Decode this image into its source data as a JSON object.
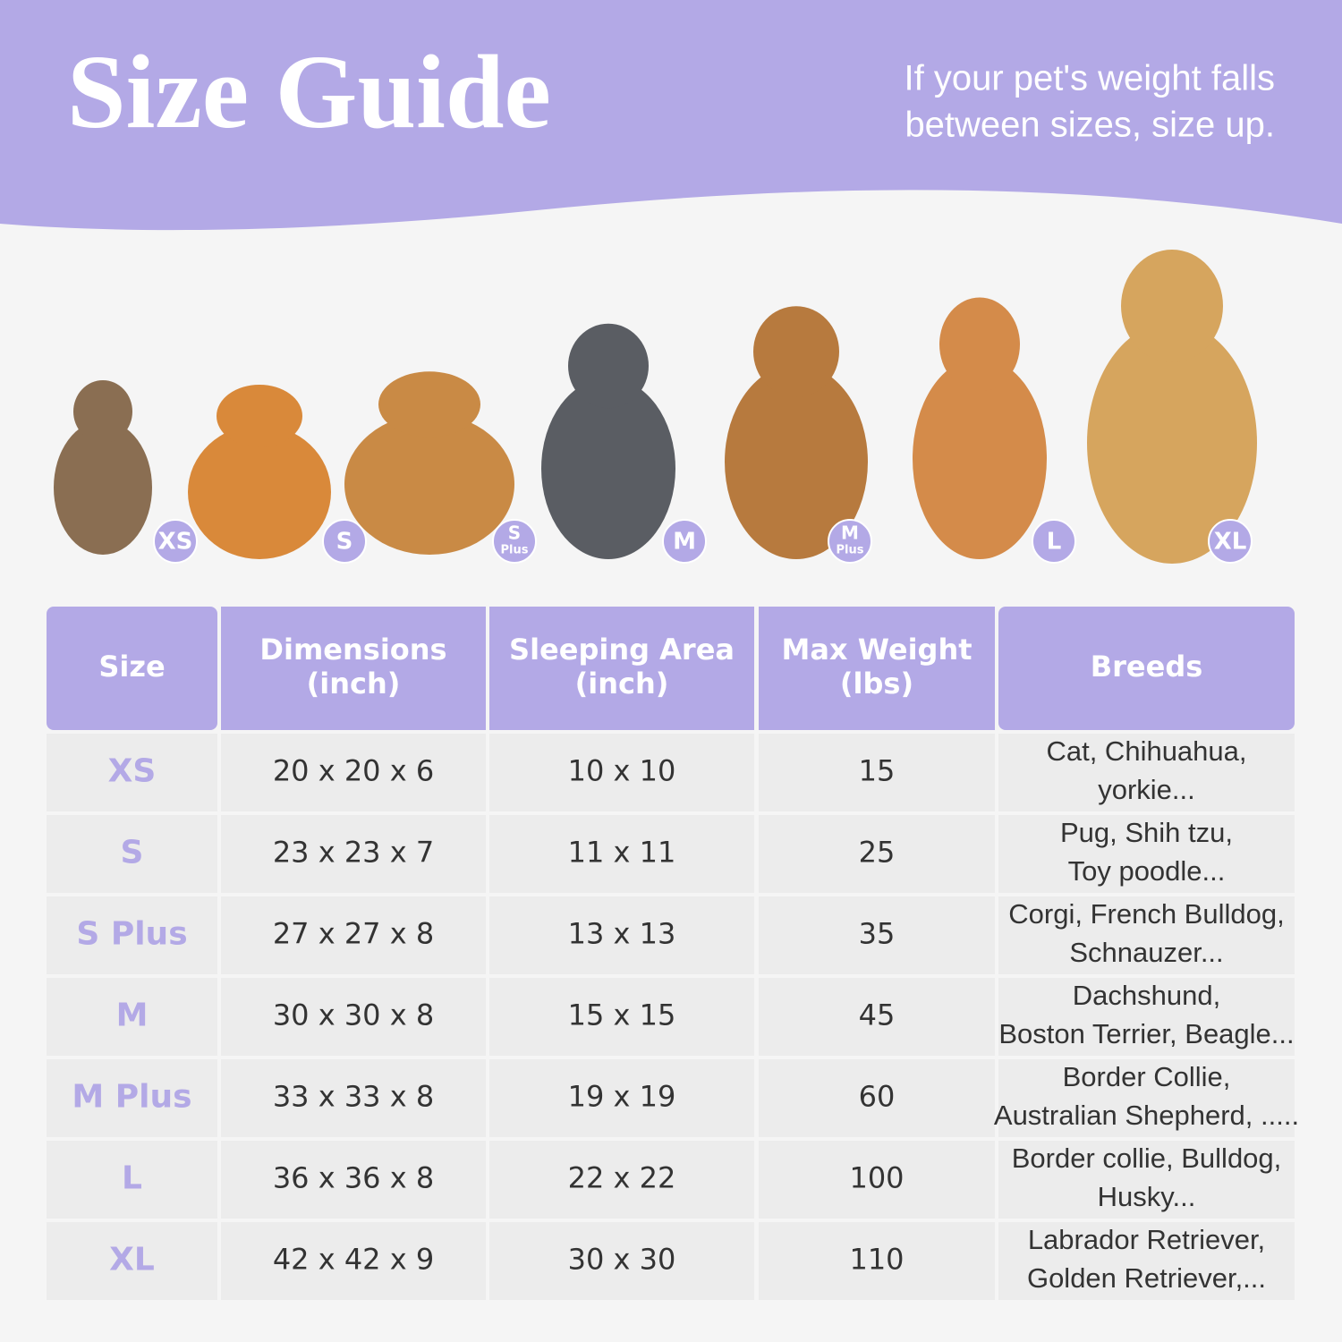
{
  "header": {
    "title": "Size Guide",
    "note": [
      "If your pet's weight falls",
      "between sizes, size up."
    ]
  },
  "badges": [
    {
      "label": "XS"
    },
    {
      "label": "S"
    },
    {
      "label": "S",
      "sub": "Plus"
    },
    {
      "label": "M"
    },
    {
      "label": "M",
      "sub": "Plus"
    },
    {
      "label": "L"
    },
    {
      "label": "XL"
    }
  ],
  "table": {
    "columns": [
      [
        "Size"
      ],
      [
        "Dimensions",
        "(inch)"
      ],
      [
        "Sleeping Area",
        "(inch)"
      ],
      [
        "Max Weight",
        "(lbs)"
      ],
      [
        "Breeds"
      ]
    ],
    "rows": [
      [
        "XS",
        "20 x 20 x 6",
        "10 x 10",
        15,
        [
          "Cat, Chihuahua,",
          "yorkie..."
        ]
      ],
      [
        "S",
        "23 x 23 x 7",
        "11 x 11",
        25,
        [
          "Pug, Shih tzu,",
          "Toy poodle..."
        ]
      ],
      [
        "S Plus",
        "27 x 27 x 8",
        "13 x 13",
        35,
        [
          "Corgi, French Bulldog,",
          "Schnauzer..."
        ]
      ],
      [
        "M",
        "30 x 30 x 8",
        "15 x 15",
        45,
        [
          "Dachshund,",
          "Boston Terrier, Beagle..."
        ]
      ],
      [
        "M Plus",
        "33 x 33 x 8",
        "19 x 19",
        60,
        [
          "Border Collie,",
          "Australian Shepherd, ....."
        ]
      ],
      [
        "L",
        "36 x 36 x 8",
        "22 x 22",
        100,
        [
          "Border collie, Bulldog,",
          "Husky..."
        ]
      ],
      [
        "XL",
        "42 x 42 x 9",
        "30 x 30",
        110,
        [
          "Labrador Retriever,",
          "Golden Retriever,..."
        ]
      ]
    ]
  }
}
